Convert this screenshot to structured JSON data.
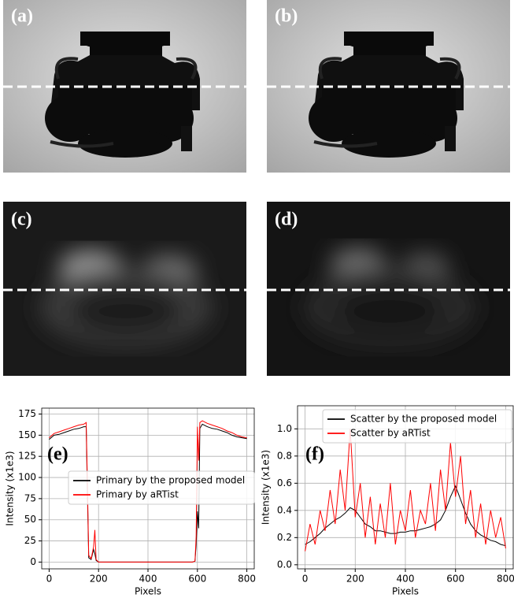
{
  "panels": [
    "(a)",
    "(b)",
    "(c)",
    "(d)"
  ],
  "chart_data": [
    {
      "type": "line",
      "annotation": "(e)",
      "x_label": "Pixels",
      "y_label": "Intensity (x1e3)",
      "x": [
        0,
        20,
        40,
        60,
        80,
        100,
        120,
        140,
        150,
        155,
        160,
        170,
        180,
        185,
        190,
        200,
        250,
        300,
        350,
        400,
        450,
        500,
        550,
        580,
        590,
        595,
        600,
        605,
        610,
        620,
        640,
        660,
        680,
        700,
        720,
        740,
        760,
        780,
        800
      ],
      "series": [
        {
          "name": "Primary by the proposed model",
          "color": "#000000",
          "values": [
            145,
            150,
            151,
            153,
            155,
            157,
            158,
            160,
            160,
            80,
            5,
            3,
            15,
            10,
            2,
            0,
            0,
            0,
            0,
            0,
            0,
            0,
            0,
            0,
            1,
            20,
            60,
            40,
            158,
            163,
            160,
            158,
            157,
            155,
            153,
            150,
            148,
            147,
            146
          ]
        },
        {
          "name": "Primary by aRTist",
          "color": "#ff0000",
          "values": [
            147,
            152,
            154,
            156,
            158,
            160,
            162,
            163,
            165,
            90,
            8,
            4,
            18,
            38,
            3,
            0,
            0,
            0,
            0,
            0,
            0,
            0,
            0,
            0,
            1,
            30,
            160,
            120,
            165,
            167,
            164,
            162,
            160,
            158,
            155,
            153,
            150,
            148,
            147
          ]
        }
      ],
      "xlim": [
        -30,
        830
      ],
      "xticks": [
        0,
        200,
        400,
        600,
        800
      ],
      "ylim": [
        -8,
        182
      ],
      "yticks": [
        0,
        25,
        50,
        75,
        100,
        125,
        150,
        175
      ],
      "grid": true
    },
    {
      "type": "line",
      "annotation": "(f)",
      "x_label": "Pixels",
      "y_label": "Intensity (x1e3)",
      "x": [
        0,
        20,
        40,
        60,
        80,
        100,
        120,
        140,
        160,
        180,
        200,
        220,
        240,
        260,
        280,
        300,
        320,
        340,
        360,
        380,
        400,
        420,
        440,
        460,
        480,
        500,
        520,
        540,
        560,
        580,
        600,
        620,
        640,
        660,
        680,
        700,
        720,
        740,
        760,
        780,
        800
      ],
      "series": [
        {
          "name": "Scatter by the proposed model",
          "color": "#000000",
          "values": [
            0.15,
            0.17,
            0.2,
            0.23,
            0.27,
            0.3,
            0.33,
            0.35,
            0.38,
            0.42,
            0.4,
            0.35,
            0.3,
            0.28,
            0.25,
            0.25,
            0.24,
            0.23,
            0.23,
            0.24,
            0.24,
            0.25,
            0.25,
            0.26,
            0.27,
            0.28,
            0.3,
            0.33,
            0.4,
            0.5,
            0.58,
            0.48,
            0.38,
            0.3,
            0.25,
            0.22,
            0.2,
            0.18,
            0.17,
            0.15,
            0.14
          ]
        },
        {
          "name": "Scatter by aRTist",
          "color": "#ff0000",
          "values": [
            0.1,
            0.3,
            0.15,
            0.4,
            0.25,
            0.55,
            0.3,
            0.7,
            0.4,
            1.0,
            0.35,
            0.6,
            0.2,
            0.5,
            0.15,
            0.45,
            0.2,
            0.6,
            0.15,
            0.4,
            0.25,
            0.55,
            0.2,
            0.4,
            0.3,
            0.6,
            0.25,
            0.7,
            0.4,
            0.9,
            0.5,
            0.8,
            0.3,
            0.55,
            0.2,
            0.45,
            0.15,
            0.4,
            0.2,
            0.35,
            0.12
          ]
        }
      ],
      "xlim": [
        -30,
        830
      ],
      "xticks": [
        0,
        200,
        400,
        600,
        800
      ],
      "ylim": [
        -0.03,
        1.17
      ],
      "yticks": [
        {
          "value": 0,
          "label": "0.0"
        },
        0.2,
        0.4,
        0.6,
        0.8,
        {
          "value": 1,
          "label": "1.0"
        }
      ],
      "grid": true
    }
  ]
}
